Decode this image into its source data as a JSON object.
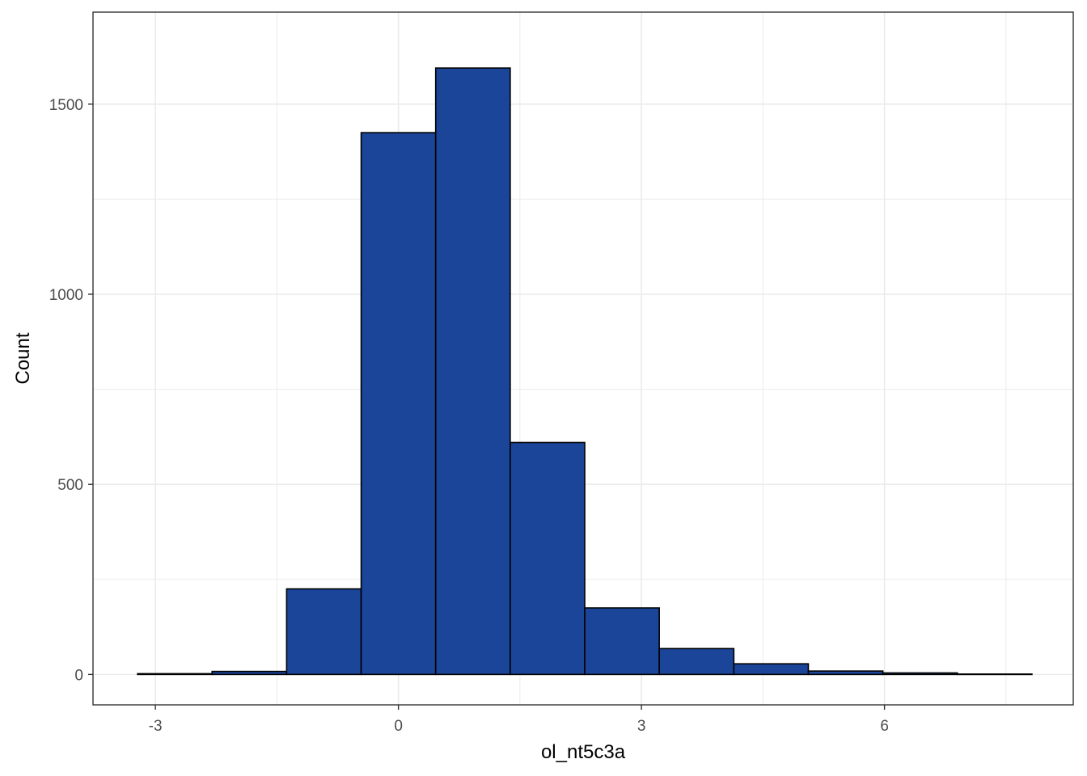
{
  "chart_data": {
    "type": "bar",
    "subtype": "histogram",
    "title": "",
    "xlabel": "ol_nt5c3a",
    "ylabel": "Count",
    "xlim": [
      -3.2,
      7.8
    ],
    "ylim": [
      0,
      1600
    ],
    "x_ticks": [
      -3,
      0,
      3,
      6
    ],
    "x_tick_labels": [
      "-3",
      "0",
      "3",
      "6"
    ],
    "y_ticks": [
      0,
      500,
      1000,
      1500
    ],
    "y_tick_labels": [
      "0",
      "500",
      "1000",
      "1500"
    ],
    "grid": true,
    "bins": [
      {
        "x0": -3.22,
        "x1": -2.3,
        "count": 2
      },
      {
        "x0": -2.3,
        "x1": -1.38,
        "count": 8
      },
      {
        "x0": -1.38,
        "x1": -0.46,
        "count": 225
      },
      {
        "x0": -0.46,
        "x1": 0.46,
        "count": 1425
      },
      {
        "x0": 0.46,
        "x1": 1.38,
        "count": 1595
      },
      {
        "x0": 1.38,
        "x1": 2.3,
        "count": 610
      },
      {
        "x0": 2.3,
        "x1": 3.22,
        "count": 175
      },
      {
        "x0": 3.22,
        "x1": 4.14,
        "count": 68
      },
      {
        "x0": 4.14,
        "x1": 5.06,
        "count": 28
      },
      {
        "x0": 5.06,
        "x1": 5.98,
        "count": 9
      },
      {
        "x0": 5.98,
        "x1": 6.9,
        "count": 4
      },
      {
        "x0": 6.9,
        "x1": 7.82,
        "count": 1
      }
    ],
    "colors": {
      "fill": "#1a4599",
      "outline": "#000000",
      "grid": "#ebebeb",
      "panel_border": "#333333"
    }
  }
}
